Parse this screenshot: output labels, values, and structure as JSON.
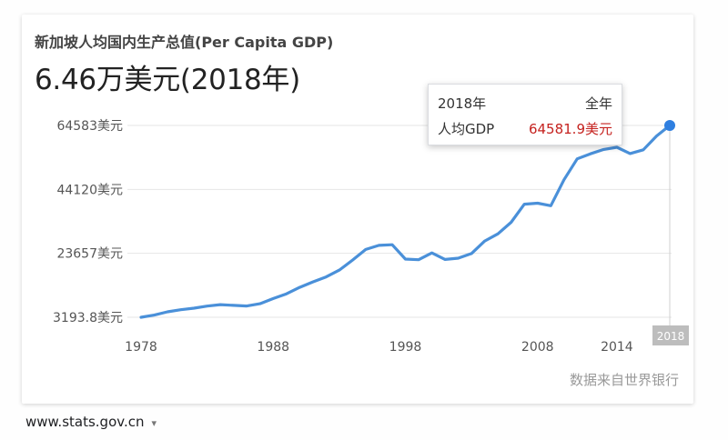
{
  "title": "新加坡人均国内生产总值(Per Capita GDP)",
  "headline": "6.46万美元(2018年)",
  "tooltip": {
    "year": "2018年",
    "period": "全年",
    "metric": "人均GDP",
    "value": "64581.9美元"
  },
  "source": "数据来自世界银行",
  "caption": {
    "url": "www.stats.gov.cn",
    "arrow": "▾"
  },
  "colors": {
    "line": "#4a90d9",
    "point": "#2f7fe0",
    "grid": "#e6e6e6",
    "highlight_box": "#bdbdbd",
    "tooltip_value": "#c5221f"
  },
  "chart_data": {
    "type": "line",
    "title": "新加坡人均国内生产总值(Per Capita GDP)",
    "xlabel": "",
    "ylabel": "",
    "x_ticks": [
      1978,
      1988,
      1998,
      2008,
      2014
    ],
    "highlight_tick": 2018,
    "y_ticks": [
      {
        "value": 64583,
        "label": "64583美元"
      },
      {
        "value": 44120,
        "label": "44120美元"
      },
      {
        "value": 23657,
        "label": "23657美元"
      },
      {
        "value": 3193.8,
        "label": "3193.8美元"
      }
    ],
    "ylim": [
      3193.8,
      64583
    ],
    "xlim": [
      1978,
      2018
    ],
    "grid": true,
    "series": [
      {
        "x": [
          1978,
          1979,
          1980,
          1981,
          1982,
          1983,
          1984,
          1985,
          1986,
          1987,
          1988,
          1989,
          1990,
          1991,
          1992,
          1993,
          1994,
          1995,
          1996,
          1997,
          1998,
          1999,
          2000,
          2001,
          2002,
          2003,
          2004,
          2005,
          2006,
          2007,
          2008,
          2009,
          2010,
          2011,
          2012,
          2013,
          2014,
          2015,
          2016,
          2017,
          2018
        ],
        "y": [
          3194,
          3900,
          4930,
          5600,
          6100,
          6760,
          7240,
          7000,
          6800,
          7540,
          9200,
          10700,
          12760,
          14500,
          16100,
          18300,
          21500,
          24900,
          26200,
          26400,
          21800,
          21600,
          23800,
          21700,
          22100,
          23600,
          27600,
          29900,
          33600,
          39400,
          39700,
          38900,
          47200,
          53900,
          55500,
          56900,
          57600,
          55600,
          56800,
          61200,
          64582
        ]
      }
    ],
    "annotation": {
      "x": 2018,
      "year_label": "2018年",
      "period": "全年",
      "metric": "人均GDP",
      "value": 64581.9,
      "value_label": "64581.9美元"
    }
  }
}
